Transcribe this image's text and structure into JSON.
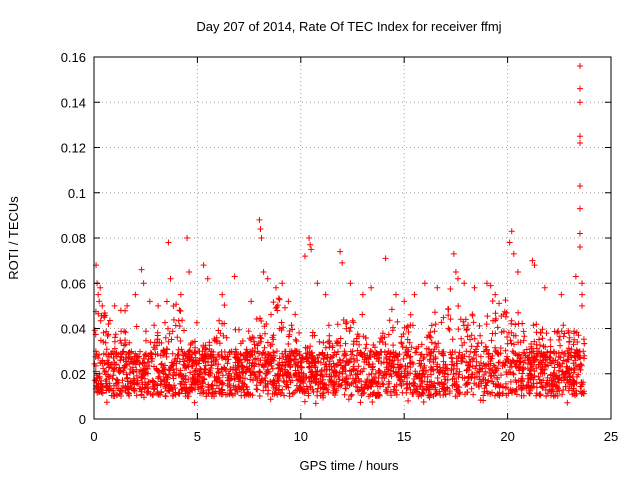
{
  "chart_data": {
    "type": "scatter",
    "title": "Day 207 of 2014, Rate Of TEC Index for receiver ffmj",
    "xlabel": "GPS time / hours",
    "ylabel": "ROTI / TECUs",
    "xlim": [
      0,
      25
    ],
    "ylim": [
      0,
      0.16
    ],
    "xticks": [
      0,
      5,
      10,
      15,
      20,
      25
    ],
    "xtick_labels": [
      "0",
      "5",
      "10",
      "15",
      "20",
      "25"
    ],
    "yticks": [
      0,
      0.02,
      0.04,
      0.06,
      0.08,
      0.1,
      0.12,
      0.14,
      0.16
    ],
    "ytick_labels": [
      "0",
      "0.02",
      "0.04",
      "0.06",
      "0.08",
      "0.1",
      "0.12",
      "0.14",
      "0.16"
    ],
    "grid": true,
    "marker": "+",
    "color": "#ff0000",
    "series": [
      {
        "name": "ROTI",
        "x": [
          0.1,
          0.15,
          0.2,
          0.25,
          0.3,
          0.4,
          0.5,
          0.7,
          1.0,
          1.3,
          1.6,
          2.0,
          2.3,
          2.4,
          2.7,
          3.1,
          3.6,
          3.7,
          4.2,
          4.5,
          4.6,
          5.3,
          5.5,
          6.2,
          6.8,
          7.6,
          8.0,
          8.05,
          8.1,
          8.2,
          8.4,
          8.8,
          9.1,
          9.4,
          10.2,
          10.4,
          10.45,
          10.5,
          10.8,
          11.2,
          11.9,
          12.0,
          12.4,
          13.0,
          13.4,
          14.1,
          14.6,
          15.0,
          15.5,
          16.0,
          16.6,
          17.4,
          17.5,
          17.6,
          17.9,
          18.4,
          19.0,
          19.4,
          20.1,
          20.2,
          20.3,
          20.5,
          21.2,
          21.3,
          21.8,
          22.6,
          23.3,
          23.5,
          23.5,
          23.5,
          23.5,
          23.5,
          23.5,
          23.5,
          23.5,
          23.5,
          23.6,
          23.6,
          23.6
        ],
        "y": [
          0.068,
          0.06,
          0.055,
          0.052,
          0.058,
          0.05,
          0.045,
          0.042,
          0.05,
          0.048,
          0.05,
          0.055,
          0.066,
          0.06,
          0.052,
          0.05,
          0.078,
          0.062,
          0.055,
          0.08,
          0.065,
          0.068,
          0.062,
          0.055,
          0.063,
          0.052,
          0.088,
          0.084,
          0.08,
          0.065,
          0.062,
          0.058,
          0.06,
          0.052,
          0.072,
          0.08,
          0.077,
          0.075,
          0.06,
          0.055,
          0.074,
          0.069,
          0.06,
          0.055,
          0.058,
          0.071,
          0.055,
          0.052,
          0.055,
          0.06,
          0.058,
          0.073,
          0.065,
          0.062,
          0.06,
          0.058,
          0.06,
          0.055,
          0.078,
          0.083,
          0.073,
          0.065,
          0.07,
          0.068,
          0.058,
          0.055,
          0.063,
          0.156,
          0.146,
          0.14,
          0.125,
          0.122,
          0.103,
          0.093,
          0.082,
          0.076,
          0.06,
          0.055,
          0.05
        ]
      }
    ]
  }
}
